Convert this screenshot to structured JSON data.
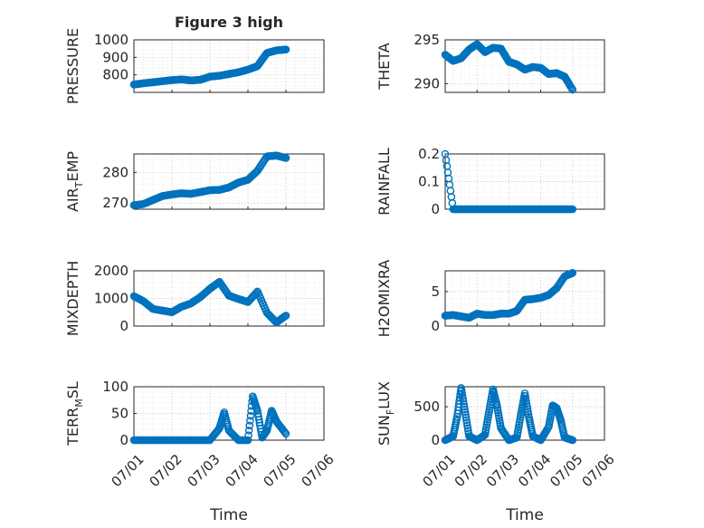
{
  "figure": {
    "title": "Figure 3 high"
  },
  "colors": {
    "marker": "#0072BD",
    "axis": "#262626",
    "grid": "#c8c8c8"
  },
  "chart_data": [
    {
      "id": "pressure",
      "type": "scatter",
      "title": "Figure 3 high",
      "ylabel_main": "PRESSURE",
      "ylabel_sub": "",
      "ylabel_rest": "",
      "ylim": [
        700,
        1000
      ],
      "yticks": [
        800,
        900,
        1000
      ],
      "ytick_labels": [
        "800",
        "900",
        "1000"
      ],
      "x": [
        "07/01 00:00",
        "07/01 06:00",
        "07/01 12:00",
        "07/01 18:00",
        "07/02 00:00",
        "07/02 06:00",
        "07/02 12:00",
        "07/02 18:00",
        "07/03 00:00",
        "07/03 06:00",
        "07/03 12:00",
        "07/03 18:00",
        "07/04 00:00",
        "07/04 06:00",
        "07/04 12:00",
        "07/04 18:00",
        "07/05 00:00"
      ],
      "y": [
        745,
        752,
        758,
        764,
        770,
        774,
        768,
        772,
        790,
        795,
        805,
        815,
        830,
        850,
        925,
        940,
        945
      ]
    },
    {
      "id": "theta",
      "type": "scatter",
      "title": "",
      "ylabel_main": "THETA",
      "ylabel_sub": "",
      "ylabel_rest": "",
      "ylim": [
        289,
        295
      ],
      "yticks": [
        290,
        295
      ],
      "ytick_labels": [
        "290",
        "295"
      ],
      "x": [
        "07/01 00:00",
        "07/01 06:00",
        "07/01 12:00",
        "07/01 18:00",
        "07/02 00:00",
        "07/02 06:00",
        "07/02 12:00",
        "07/02 18:00",
        "07/03 00:00",
        "07/03 06:00",
        "07/03 12:00",
        "07/03 18:00",
        "07/04 00:00",
        "07/04 06:00",
        "07/04 12:00",
        "07/04 18:00",
        "07/05 00:00"
      ],
      "y": [
        293.3,
        292.6,
        292.9,
        293.9,
        294.5,
        293.6,
        294.1,
        294.0,
        292.5,
        292.2,
        291.6,
        291.9,
        291.8,
        291.1,
        291.2,
        290.8,
        289.3
      ]
    },
    {
      "id": "air_temp",
      "type": "scatter",
      "title": "",
      "ylabel_main": "AIR",
      "ylabel_sub": "T",
      "ylabel_rest": "EMP",
      "ylim": [
        268,
        286
      ],
      "yticks": [
        270,
        280
      ],
      "ytick_labels": [
        "270",
        "280"
      ],
      "x": [
        "07/01 00:00",
        "07/01 06:00",
        "07/01 12:00",
        "07/01 18:00",
        "07/02 00:00",
        "07/02 06:00",
        "07/02 12:00",
        "07/02 18:00",
        "07/03 00:00",
        "07/03 06:00",
        "07/03 12:00",
        "07/03 18:00",
        "07/04 00:00",
        "07/04 06:00",
        "07/04 12:00",
        "07/04 18:00",
        "07/05 00:00"
      ],
      "y": [
        269.3,
        269.7,
        271.0,
        272.3,
        272.8,
        273.2,
        273.0,
        273.6,
        274.2,
        274.3,
        275.1,
        276.7,
        277.6,
        280.5,
        285.2,
        285.5,
        284.7
      ]
    },
    {
      "id": "rainfall",
      "type": "scatter",
      "title": "",
      "ylabel_main": "RAINFALL",
      "ylabel_sub": "",
      "ylabel_rest": "",
      "ylim": [
        0,
        0.2
      ],
      "yticks": [
        0,
        0.1,
        0.2
      ],
      "ytick_labels": [
        "0",
        "0.1",
        "0.2"
      ],
      "x": [
        "07/01 00:00",
        "07/01 06:00",
        "07/01 12:00",
        "07/01 18:00",
        "07/02 00:00",
        "07/02 06:00",
        "07/02 12:00",
        "07/02 18:00",
        "07/03 00:00",
        "07/03 06:00",
        "07/03 12:00",
        "07/03 18:00",
        "07/04 00:00",
        "07/04 06:00",
        "07/04 12:00",
        "07/04 18:00",
        "07/05 00:00"
      ],
      "y": [
        0.2,
        0,
        0,
        0,
        0,
        0,
        0,
        0,
        0,
        0,
        0,
        0,
        0,
        0,
        0,
        0,
        0
      ]
    },
    {
      "id": "mixdepth",
      "type": "scatter",
      "title": "",
      "ylabel_main": "MIXDEPTH",
      "ylabel_sub": "",
      "ylabel_rest": "",
      "ylim": [
        0,
        2000
      ],
      "yticks": [
        0,
        1000,
        2000
      ],
      "ytick_labels": [
        "0",
        "1000",
        "2000"
      ],
      "x": [
        "07/01 00:00",
        "07/01 06:00",
        "07/01 12:00",
        "07/01 18:00",
        "07/02 00:00",
        "07/02 06:00",
        "07/02 12:00",
        "07/02 18:00",
        "07/03 00:00",
        "07/03 06:00",
        "07/03 12:00",
        "07/03 18:00",
        "07/04 00:00",
        "07/04 06:00",
        "07/04 12:00",
        "07/04 18:00",
        "07/05 00:00"
      ],
      "y": [
        1080,
        900,
        620,
        560,
        500,
        700,
        820,
        1050,
        1350,
        1600,
        1100,
        980,
        870,
        1250,
        480,
        130,
        380
      ]
    },
    {
      "id": "h2omixra",
      "type": "scatter",
      "title": "",
      "ylabel_main": "H2OMIXRA",
      "ylabel_sub": "",
      "ylabel_rest": "",
      "ylim": [
        0,
        8
      ],
      "yticks": [
        0,
        5
      ],
      "ytick_labels": [
        "0",
        "5"
      ],
      "x": [
        "07/01 00:00",
        "07/01 06:00",
        "07/01 12:00",
        "07/01 18:00",
        "07/02 00:00",
        "07/02 06:00",
        "07/02 12:00",
        "07/02 18:00",
        "07/03 00:00",
        "07/03 06:00",
        "07/03 12:00",
        "07/03 18:00",
        "07/04 00:00",
        "07/04 06:00",
        "07/04 12:00",
        "07/04 18:00",
        "07/05 00:00"
      ],
      "y": [
        1.5,
        1.6,
        1.4,
        1.2,
        1.8,
        1.6,
        1.6,
        1.8,
        1.8,
        2.2,
        3.8,
        3.9,
        4.1,
        4.5,
        5.5,
        7.2,
        7.7
      ]
    },
    {
      "id": "terr_msl",
      "type": "scatter",
      "title": "",
      "ylabel_main": "TERR",
      "ylabel_sub": "M",
      "ylabel_rest": "SL",
      "ylim": [
        0,
        100
      ],
      "yticks": [
        0,
        50,
        100
      ],
      "ytick_labels": [
        "0",
        "50",
        "100"
      ],
      "x": [
        "07/01 00:00",
        "07/01 06:00",
        "07/01 12:00",
        "07/01 18:00",
        "07/02 00:00",
        "07/02 06:00",
        "07/02 12:00",
        "07/02 18:00",
        "07/03 00:00",
        "07/03 06:00",
        "07/03 09:00",
        "07/03 12:00",
        "07/03 18:00",
        "07/04 00:00",
        "07/04 03:00",
        "07/04 06:00",
        "07/04 09:00",
        "07/04 12:00",
        "07/04 15:00",
        "07/04 18:00",
        "07/05 00:00"
      ],
      "y": [
        0,
        0,
        0,
        0,
        0,
        0,
        0,
        0,
        0,
        22,
        52,
        18,
        0,
        0,
        82,
        55,
        5,
        18,
        55,
        35,
        12
      ]
    },
    {
      "id": "sun_flux",
      "type": "scatter",
      "title": "",
      "ylabel_main": "SUN",
      "ylabel_sub": "F",
      "ylabel_rest": "LUX",
      "ylim": [
        0,
        800
      ],
      "yticks": [
        0,
        500
      ],
      "ytick_labels": [
        "0",
        "500"
      ],
      "x": [
        "07/01 00:00",
        "07/01 06:00",
        "07/01 09:00",
        "07/01 12:00",
        "07/01 15:00",
        "07/01 18:00",
        "07/02 00:00",
        "07/02 06:00",
        "07/02 09:00",
        "07/02 12:00",
        "07/02 15:00",
        "07/02 18:00",
        "07/03 00:00",
        "07/03 06:00",
        "07/03 09:00",
        "07/03 12:00",
        "07/03 15:00",
        "07/03 18:00",
        "07/04 00:00",
        "07/04 06:00",
        "07/04 09:00",
        "07/04 12:00",
        "07/04 15:00",
        "07/04 18:00",
        "07/05 00:00"
      ],
      "y": [
        0,
        60,
        350,
        780,
        420,
        60,
        0,
        80,
        420,
        760,
        520,
        180,
        0,
        40,
        380,
        700,
        350,
        60,
        0,
        200,
        520,
        480,
        300,
        40,
        0
      ]
    }
  ],
  "xaxis": {
    "xlim": [
      "07/01 00:00",
      "07/06 00:00"
    ],
    "ticks": [
      "07/01",
      "07/02",
      "07/03",
      "07/04",
      "07/05",
      "07/06"
    ],
    "xlabel": "Time"
  }
}
